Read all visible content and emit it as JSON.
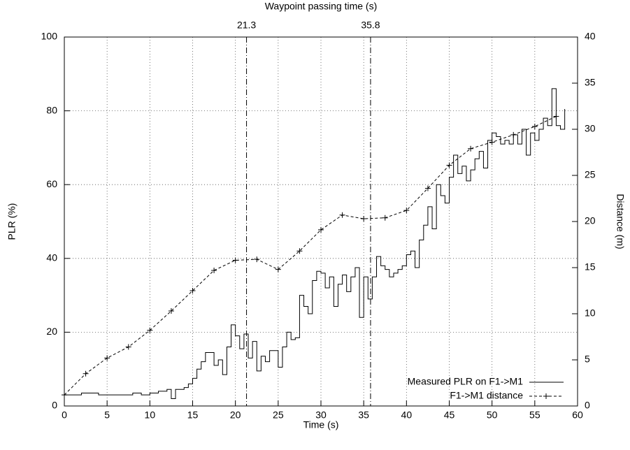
{
  "chart_data": {
    "type": "line",
    "xlabel": "Time (s)",
    "ylabel": "PLR (%)",
    "y2label": "Distance (m)",
    "x2label": "Waypoint passing time (s)",
    "xlim": [
      0,
      60
    ],
    "xticks": [
      0,
      5,
      10,
      15,
      20,
      25,
      30,
      35,
      40,
      45,
      50,
      55,
      60
    ],
    "ylim": [
      0,
      100
    ],
    "yticks": [
      0,
      20,
      40,
      60,
      80,
      100
    ],
    "y2lim": [
      0,
      40
    ],
    "y2ticks": [
      0,
      5,
      10,
      15,
      20,
      25,
      30,
      35,
      40
    ],
    "x2ticks": [
      21.3,
      35.8
    ],
    "grid": true,
    "legend": "lower right",
    "series": [
      {
        "name": "Measured PLR on F1->M1",
        "color": "#000000",
        "style": "steps",
        "x": [
          0,
          2,
          4,
          6,
          8,
          9,
          10,
          11,
          12,
          12.5,
          13,
          14,
          14.5,
          15,
          15.5,
          16,
          16.5,
          17,
          17.5,
          18,
          18.5,
          19,
          19.5,
          20,
          20.5,
          21,
          21.5,
          22,
          22.5,
          23,
          23.5,
          24,
          25,
          25.5,
          26,
          26.5,
          27,
          27.5,
          28,
          28.5,
          29,
          29.5,
          30,
          30.5,
          31,
          31.5,
          32,
          32.5,
          33,
          33.5,
          34,
          34.5,
          35,
          35.5,
          36,
          36.5,
          37,
          37.5,
          38,
          38.5,
          39,
          39.5,
          40,
          40.5,
          41,
          41.5,
          42,
          42.5,
          43,
          43.5,
          44,
          44.5,
          45,
          45.5,
          46,
          46.5,
          47,
          47.5,
          48,
          48.5,
          49,
          49.5,
          50,
          50.5,
          51,
          51.5,
          52,
          52.5,
          53,
          53.5,
          54,
          54.5,
          55,
          55.5,
          56,
          56.5,
          57,
          57.5,
          58,
          58.5
        ],
        "values": [
          3,
          3.5,
          3,
          3,
          3.5,
          3,
          3.5,
          4,
          4.5,
          2,
          4.5,
          5,
          6,
          7.5,
          10,
          12,
          14.5,
          14.5,
          11,
          12.5,
          8.5,
          16,
          22,
          19,
          15.5,
          19.5,
          13,
          17.5,
          9.5,
          13.5,
          12,
          15,
          10.5,
          16,
          20,
          18,
          18.5,
          30,
          27,
          25,
          34,
          36.5,
          36,
          32,
          35,
          27,
          33,
          35.5,
          31,
          35,
          37.5,
          24,
          35,
          29,
          35,
          40.5,
          38,
          37,
          35,
          36,
          37,
          38,
          41,
          42,
          37.5,
          45,
          49,
          54,
          48,
          60,
          57,
          55,
          62,
          68,
          63,
          65,
          61,
          64,
          67,
          69,
          64.5,
          72,
          74,
          73,
          71,
          72,
          71,
          73.5,
          71,
          75,
          68,
          74,
          72,
          75,
          78,
          76,
          86,
          76,
          75,
          80.5
        ]
      },
      {
        "name": "F1->M1 distance",
        "color": "#000000",
        "style": "dashed-points",
        "axis": "y2",
        "x": [
          0,
          2.5,
          5,
          7.5,
          10,
          12.5,
          15,
          17.5,
          20,
          22.5,
          25,
          27.5,
          30,
          32.5,
          35,
          37.5,
          40,
          42.5,
          45,
          47.5,
          50,
          52.5,
          55,
          57.5
        ],
        "values": [
          1.2,
          3.5,
          5.2,
          6.4,
          8.2,
          10.3,
          12.5,
          14.7,
          15.8,
          15.9,
          14.8,
          16.8,
          19.1,
          20.7,
          20.3,
          20.4,
          21.2,
          23.6,
          26.1,
          27.9,
          28.6,
          29.4,
          30.3,
          31.4
        ]
      }
    ]
  }
}
